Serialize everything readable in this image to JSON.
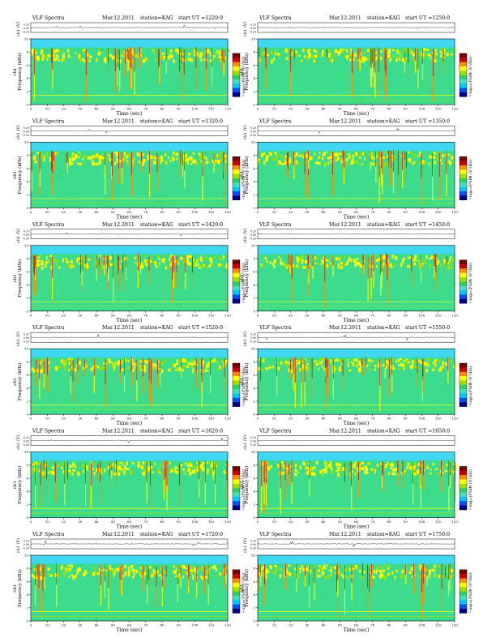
{
  "header": {
    "title": "VLF Spectra",
    "date": "Mar.12.2011",
    "station": "station=KAG",
    "start_prefix": "start  UT  ="
  },
  "labels": {
    "xlabel": "Time  (sec)",
    "ylabel_freq": "Frequency  (kHz)",
    "ylabel_channel": "ch1",
    "ylabel_wave": "ch1 (V)",
    "colorbar_label": "log₁₀(PSD) (V²/Hz)"
  },
  "chart_data": {
    "type": "heatmap",
    "description_type": "spectrogram grid",
    "panels": [
      {
        "start_ut": "1220:0"
      },
      {
        "start_ut": "1250:0"
      },
      {
        "start_ut": "1320:0"
      },
      {
        "start_ut": "1350:0"
      },
      {
        "start_ut": "1420:0"
      },
      {
        "start_ut": "1450:0"
      },
      {
        "start_ut": "1520:0"
      },
      {
        "start_ut": "1550:0"
      },
      {
        "start_ut": "1620:0"
      },
      {
        "start_ut": "1650:0"
      },
      {
        "start_ut": "1720:0"
      },
      {
        "start_ut": "1750:0"
      }
    ],
    "x_ticks": [
      0,
      10,
      20,
      30,
      40,
      50,
      60,
      70,
      80,
      90,
      100,
      110,
      120
    ],
    "xlim": [
      0,
      120
    ],
    "freq_ticks": [
      0,
      2,
      4,
      6,
      8,
      10
    ],
    "ylim_freq": [
      0,
      10
    ],
    "wave_ticks": [
      "0.20",
      "0.00",
      "-0.20"
    ],
    "ylim_wave": [
      -0.2,
      0.2
    ],
    "colorbar_ticks": [
      "",
      "-5",
      "-7"
    ],
    "colormap": [
      "#00008b",
      "#0050ff",
      "#00c8ff",
      "#40e0c0",
      "#30d060",
      "#a0e000",
      "#ffff00",
      "#ff8c00",
      "#cc0000",
      "#7a0000"
    ],
    "dominant_color": "#3cdc8c"
  }
}
